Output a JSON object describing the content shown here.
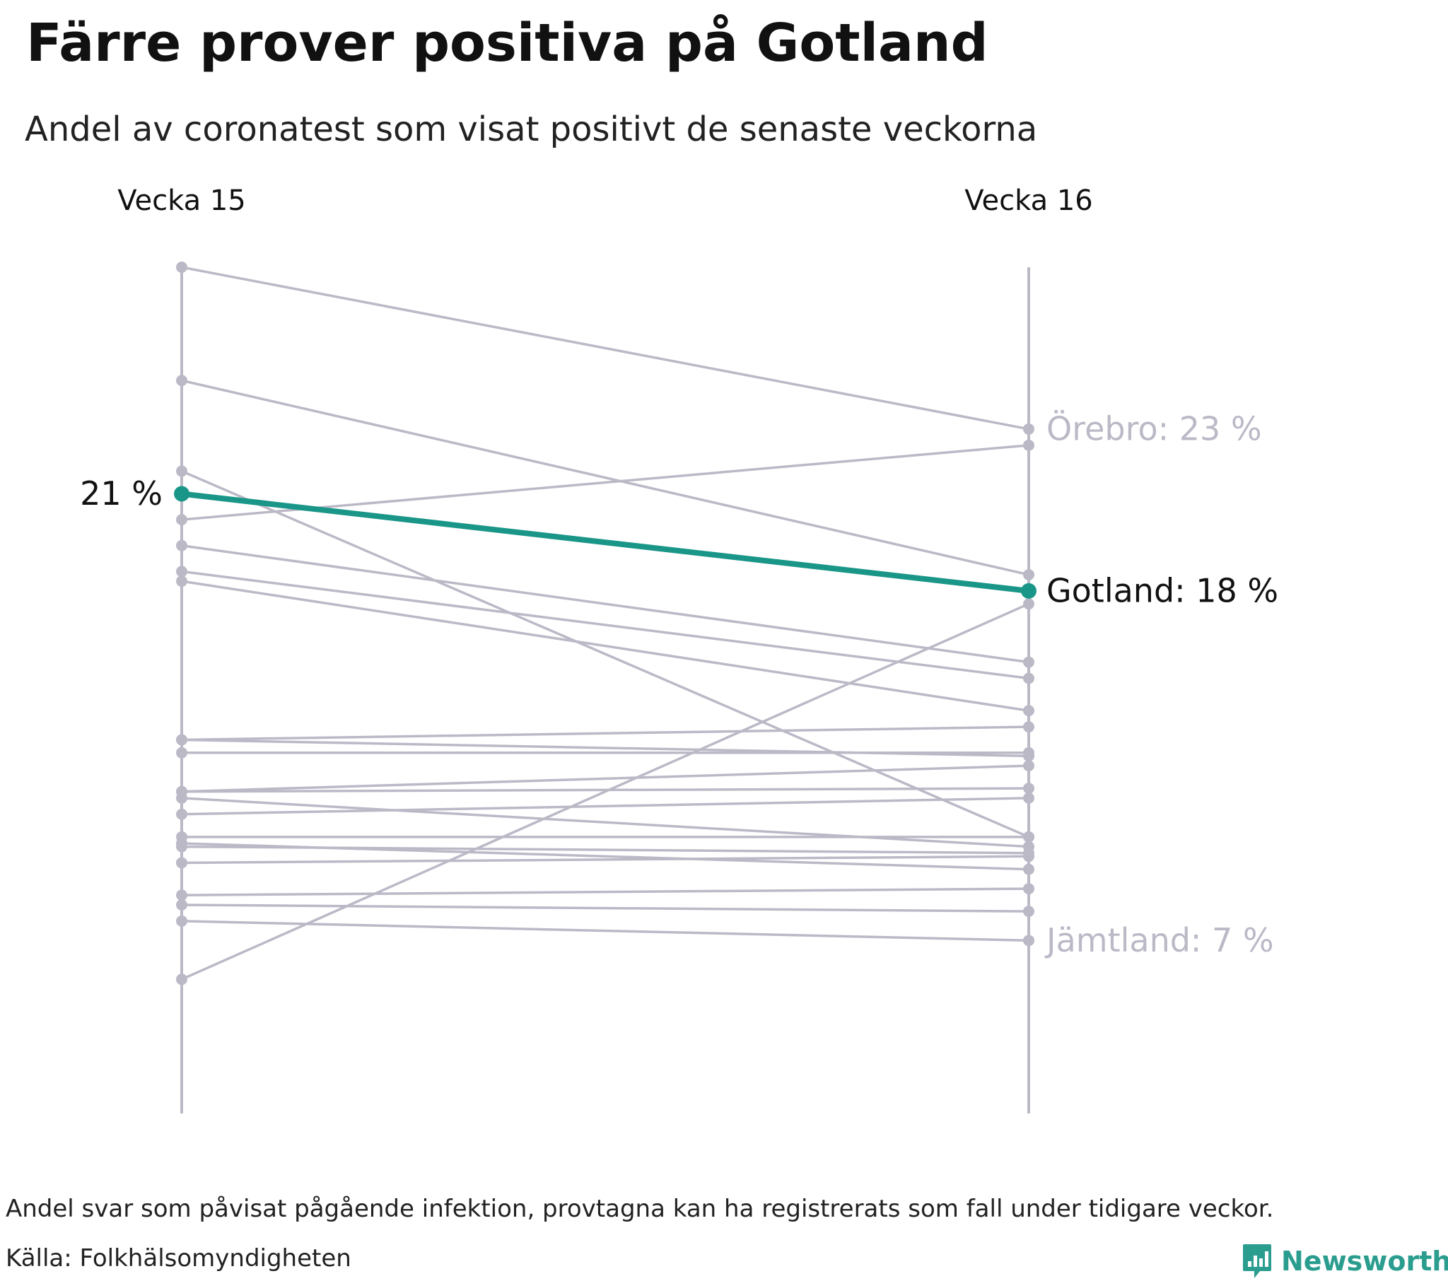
{
  "title": "Färre prover positiva på Gotland",
  "subtitle": "Andel av coronatest som visat positivt de senaste veckorna",
  "footnote": "Andel svar som påvisat pågående infektion, provtagna kan ha registrerats som fall under tidigare veckor.",
  "source": "Källa: Folkhälsomyndigheten",
  "logo_text": "Newsworthy",
  "colors": {
    "highlight": "#1a9688",
    "muted": "#bcb9c7",
    "label_dark": "#111111",
    "label_muted": "#bcb9c7",
    "logo": "#2a9d8f"
  },
  "chart_data": {
    "type": "line",
    "subtype": "slope",
    "categories": [
      "Vecka 15",
      "Vecka 16"
    ],
    "ylim": [
      0,
      28
    ],
    "series": [
      {
        "values": [
          28,
          23
        ]
      },
      {
        "values": [
          24.5,
          18.5
        ]
      },
      {
        "values": [
          21.7,
          10.4
        ]
      },
      {
        "values": [
          20.2,
          22.5
        ]
      },
      {
        "values": [
          19.4,
          15.8
        ]
      },
      {
        "values": [
          18.6,
          15.3
        ]
      },
      {
        "values": [
          18.3,
          14.3
        ]
      },
      {
        "values": [
          13.4,
          13.8
        ]
      },
      {
        "values": [
          13.4,
          12.9
        ]
      },
      {
        "values": [
          13,
          13
        ]
      },
      {
        "values": [
          11.8,
          12.6
        ]
      },
      {
        "values": [
          11.8,
          11.9
        ]
      },
      {
        "values": [
          11.6,
          10.1
        ]
      },
      {
        "values": [
          11.1,
          11.6
        ]
      },
      {
        "values": [
          10.4,
          10.4
        ]
      },
      {
        "values": [
          10.2,
          9.4
        ]
      },
      {
        "values": [
          10.1,
          9.9
        ]
      },
      {
        "values": [
          9.6,
          9.8
        ]
      },
      {
        "values": [
          8.6,
          8.8
        ]
      },
      {
        "values": [
          8.3,
          8.1
        ]
      },
      {
        "values": [
          7.8,
          7.2
        ]
      },
      {
        "values": [
          6,
          17.6
        ]
      },
      {
        "name": "Gotland",
        "values": [
          21,
          18
        ],
        "highlight": true
      }
    ],
    "labels": {
      "start_value": "21 %",
      "top": "Örebro: 23 %",
      "highlight": "Gotland: 18 %",
      "bottom": "Jämtland: 7 %"
    },
    "label_values": {
      "top": 23,
      "highlight": 18,
      "bottom": 7.2
    }
  }
}
